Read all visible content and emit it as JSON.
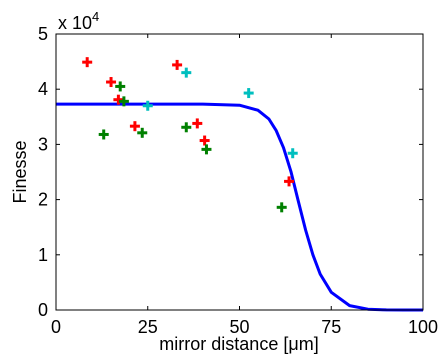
{
  "chart_data": {
    "type": "scatter",
    "title": "",
    "xlabel": "mirror distance [μm]",
    "ylabel": "Finesse",
    "exponent_base": "x 10",
    "exponent_power": "4",
    "xlim": [
      0,
      100
    ],
    "ylim": [
      0,
      50000
    ],
    "grid": false,
    "legend": "none",
    "xticks": [
      0,
      25,
      50,
      75,
      100
    ],
    "xtick_labels": [
      "0",
      "25",
      "50",
      "75",
      "100"
    ],
    "yticks": [
      0,
      10000,
      20000,
      30000,
      40000,
      50000
    ],
    "ytick_labels": [
      "0",
      "1",
      "2",
      "3",
      "4",
      "5"
    ],
    "series": [
      {
        "color": "#ff0000",
        "marker": "plus",
        "x": [
          8.5,
          15,
          17,
          21.5,
          33,
          38.5,
          40.5,
          63.5
        ],
        "y": [
          44900,
          41300,
          38100,
          33300,
          44400,
          33800,
          30700,
          23300
        ]
      },
      {
        "color": "#008000",
        "marker": "plus",
        "x": [
          13,
          17.5,
          18.5,
          23.5,
          35.5,
          41,
          61.5
        ],
        "y": [
          31800,
          40500,
          37800,
          32100,
          33100,
          29100,
          18600
        ]
      },
      {
        "color": "#00bfbf",
        "marker": "plus",
        "x": [
          25,
          35.5,
          52.5,
          64.5
        ],
        "y": [
          37000,
          43000,
          39300,
          28400
        ]
      },
      {
        "color": "#0000ff",
        "marker": "line",
        "x": [
          0,
          20,
          40,
          50,
          55,
          58,
          60,
          62,
          64,
          66,
          68,
          70,
          72,
          75,
          80,
          85,
          90,
          95,
          100
        ],
        "y": [
          37300,
          37300,
          37300,
          37100,
          36200,
          34600,
          32500,
          29400,
          25100,
          19800,
          14500,
          10000,
          6500,
          3200,
          800,
          150,
          25,
          5,
          0
        ]
      }
    ]
  }
}
